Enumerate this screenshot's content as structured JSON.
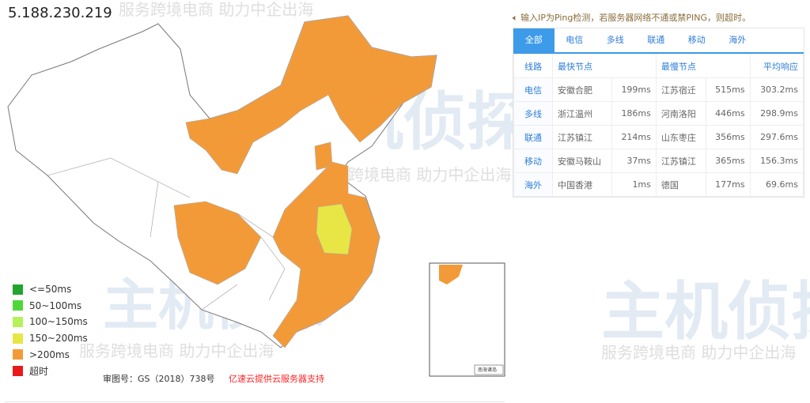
{
  "ip": "5.188.230.219",
  "watermark": {
    "brand": "主机侦探",
    "slogan": "服务跨境电商 助力中企出海"
  },
  "legend": [
    {
      "label": "<=50ms",
      "color": "#22a52e"
    },
    {
      "label": "50~100ms",
      "color": "#4fd63b"
    },
    {
      "label": "100~150ms",
      "color": "#b5f25a"
    },
    {
      "label": "150~200ms",
      "color": "#e8e645"
    },
    {
      "label": ">200ms",
      "color": "#f39a38"
    },
    {
      "label": "超时",
      "color": "#e8191a"
    }
  ],
  "footer": {
    "approval": "审图号：GS（2018）738号",
    "provider": "亿速云提供云服务器支持"
  },
  "inset_label": "南海诸岛",
  "note": "输入IP为Ping检测，若服务器网络不通或禁PING，则超时。",
  "tabs": [
    "全部",
    "电信",
    "多线",
    "联通",
    "移动",
    "海外"
  ],
  "active_tab": "全部",
  "table": {
    "headers": [
      "线路",
      "最快节点",
      "最慢节点",
      "平均响应"
    ],
    "rows": [
      [
        "电信",
        "安徽合肥",
        "199ms",
        "江苏宿迁",
        "515ms",
        "303.2ms"
      ],
      [
        "多线",
        "浙江温州",
        "186ms",
        "河南洛阳",
        "446ms",
        "298.9ms"
      ],
      [
        "联通",
        "江苏镇江",
        "214ms",
        "山东枣庄",
        "356ms",
        "297.6ms"
      ],
      [
        "移动",
        "安徽马鞍山",
        "37ms",
        "江苏镇江",
        "365ms",
        "156.3ms"
      ],
      [
        "海外",
        "中国香港",
        "1ms",
        "德国",
        "177ms",
        "69.6ms"
      ]
    ]
  }
}
